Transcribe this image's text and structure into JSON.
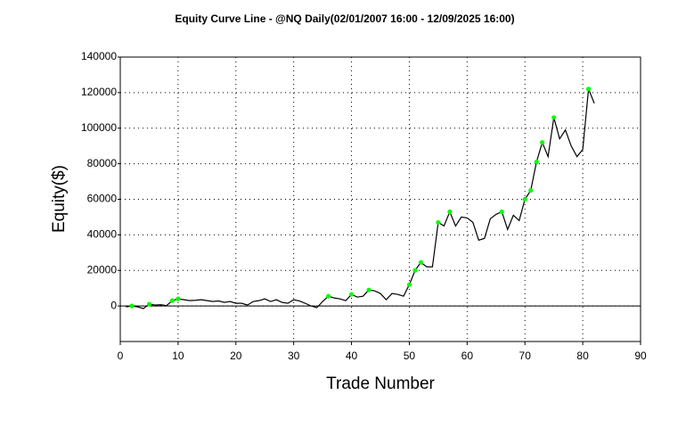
{
  "chart_data": {
    "type": "line",
    "title": "Equity Curve Line - @NQ Daily(02/01/2007 16:00 - 12/09/2025 16:00)",
    "x_label": "Trade Number",
    "y_label": "Equity($)",
    "x": [
      1,
      2,
      3,
      4,
      5,
      6,
      7,
      8,
      9,
      10,
      11,
      12,
      13,
      14,
      15,
      16,
      17,
      18,
      19,
      20,
      21,
      22,
      23,
      24,
      25,
      26,
      27,
      28,
      29,
      30,
      31,
      32,
      33,
      34,
      35,
      36,
      37,
      38,
      39,
      40,
      41,
      42,
      43,
      44,
      45,
      46,
      47,
      48,
      49,
      50,
      51,
      52,
      53,
      54,
      55,
      56,
      57,
      58,
      59,
      60,
      61,
      62,
      63,
      64,
      65,
      66,
      67,
      68,
      69,
      70,
      71,
      72,
      73,
      74,
      75,
      76,
      77,
      78,
      79,
      80,
      81,
      82
    ],
    "series": [
      {
        "color": "#000000",
        "values": [
          -500,
          0,
          -500,
          -1500,
          1000,
          500,
          700,
          200,
          3000,
          4000,
          3500,
          3000,
          3200,
          3500,
          3000,
          2500,
          2800,
          2000,
          2500,
          1500,
          1500,
          500,
          2500,
          3000,
          4000,
          2500,
          3500,
          2000,
          1500,
          3500,
          2800,
          1500,
          0,
          -1000,
          2500,
          5500,
          4500,
          4000,
          3000,
          6500,
          5000,
          5500,
          9000,
          8500,
          7000,
          3500,
          7000,
          6500,
          5500,
          12000,
          20000,
          24500,
          22000,
          22000,
          47000,
          45000,
          53000,
          45000,
          50000,
          49500,
          47000,
          37000,
          38000,
          49000,
          51500,
          53000,
          43000,
          51000,
          48000,
          60000,
          65000,
          81000,
          92000,
          84000,
          106000,
          94000,
          99000,
          90000,
          84000,
          88000,
          122000,
          114000
        ]
      }
    ],
    "highs": {
      "color": "#00ff00",
      "x": [
        2,
        5,
        9,
        10,
        36,
        40,
        43,
        50,
        51,
        52,
        55,
        57,
        66,
        70,
        71,
        72,
        73,
        75,
        81
      ],
      "values": [
        0,
        1000,
        3000,
        4000,
        5500,
        6500,
        9000,
        12000,
        20000,
        24500,
        47000,
        53000,
        53000,
        60000,
        65000,
        81000,
        92000,
        106000,
        122000
      ]
    },
    "xlim": [
      0,
      90
    ],
    "xticks": [
      0,
      10,
      20,
      30,
      40,
      50,
      60,
      70,
      80,
      90
    ],
    "ylim": [
      -20000,
      140000
    ],
    "yticks": [
      0,
      20000,
      40000,
      60000,
      80000,
      100000,
      120000,
      140000
    ],
    "grid": true
  }
}
